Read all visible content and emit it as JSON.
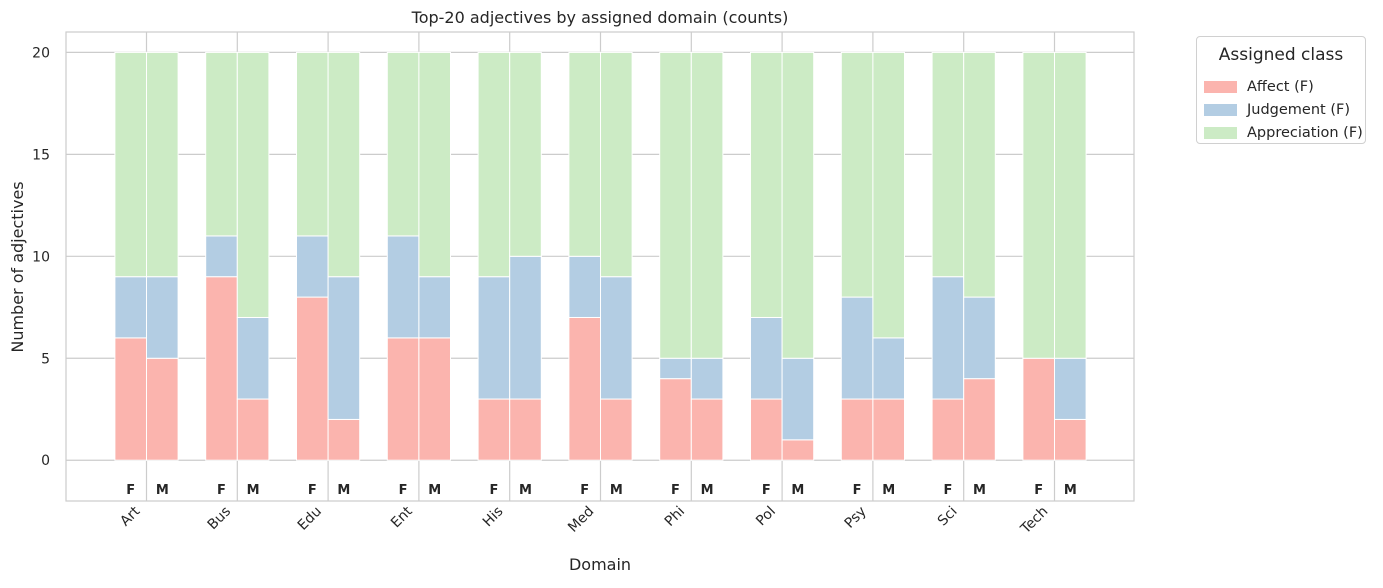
{
  "chart_data": {
    "type": "bar",
    "title": "Top-20 adjectives by assigned domain (counts)",
    "xlabel": "Domain",
    "ylabel": "Number of adjectives",
    "categories": [
      "Art",
      "Bus",
      "Edu",
      "Ent",
      "His",
      "Med",
      "Phi",
      "Pol",
      "Psy",
      "Sci",
      "Tech"
    ],
    "subgroups": [
      "F",
      "M"
    ],
    "ylim": [
      -2,
      21
    ],
    "yticks": [
      0,
      5,
      10,
      15,
      20
    ],
    "grid": true,
    "stacked": true,
    "legend": {
      "title": "Assigned class",
      "placement": "outside-top-right"
    },
    "series": [
      {
        "name": "Affect (F)",
        "color": "#fbb4ae",
        "F": [
          6,
          9,
          8,
          6,
          3,
          7,
          4,
          3,
          3,
          3,
          5
        ],
        "M": [
          5,
          3,
          2,
          6,
          3,
          3,
          3,
          1,
          3,
          4,
          2
        ]
      },
      {
        "name": "Judgement (F)",
        "color": "#b3cde3",
        "F": [
          3,
          2,
          3,
          5,
          6,
          3,
          1,
          4,
          5,
          6,
          0
        ],
        "M": [
          4,
          4,
          7,
          3,
          7,
          6,
          2,
          4,
          3,
          4,
          3
        ]
      },
      {
        "name": "Appreciation (F)",
        "color": "#ccebc5",
        "F": [
          11,
          9,
          9,
          9,
          11,
          10,
          15,
          13,
          12,
          11,
          15
        ],
        "M": [
          11,
          13,
          11,
          11,
          10,
          11,
          15,
          15,
          14,
          12,
          15
        ]
      }
    ]
  }
}
